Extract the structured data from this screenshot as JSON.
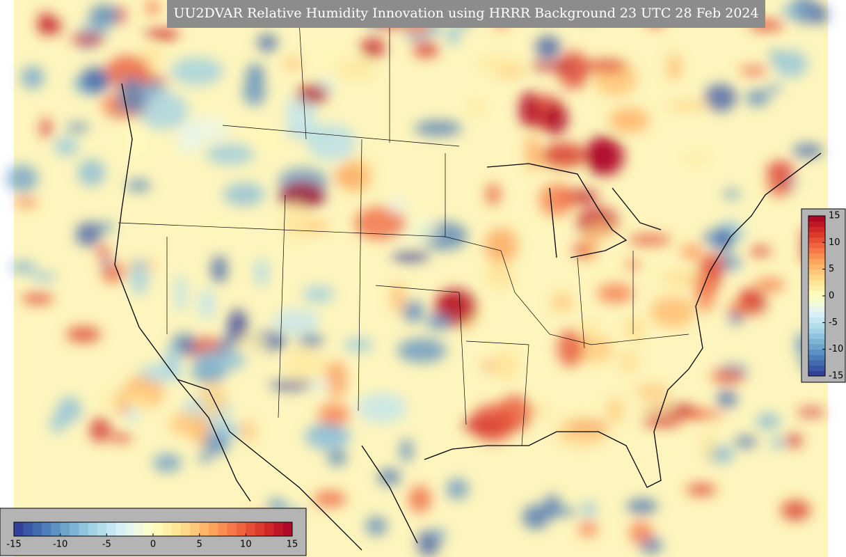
{
  "title": "UU2DVAR Relative Humidity Innovation using HRRR Background 23 UTC 28 Feb 2024",
  "colorbars": [
    {
      "orientation": "horizontal",
      "range": [
        -15,
        15
      ],
      "ticks": [
        -15,
        -10,
        -5,
        0,
        5,
        10,
        15
      ]
    },
    {
      "orientation": "vertical",
      "range": [
        -15,
        15
      ],
      "ticks": [
        15,
        10,
        5,
        0,
        -5,
        -10,
        -15
      ]
    }
  ]
}
